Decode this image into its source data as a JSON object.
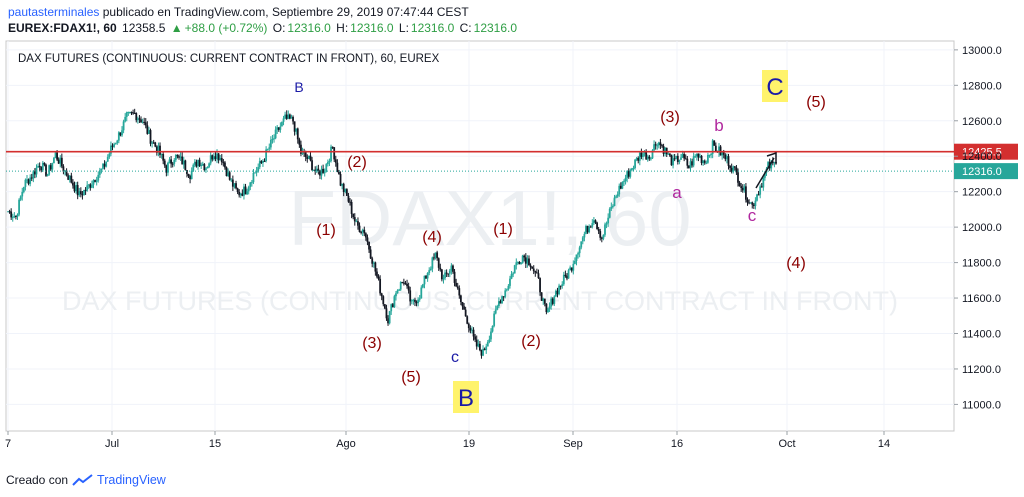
{
  "header": {
    "author": "pautasterminales",
    "published": " publicado en TradingView.com, Septiembre 29, 2019 07:47:44 CEST",
    "symbol": "EUREX:FDAX1!, 60",
    "last": "12358.5",
    "change": "+88.0 (+0.72%)",
    "o_label": "O:",
    "o_value": "12316.0",
    "h_label": "H:",
    "h_value": "12316.0",
    "l_label": "L:",
    "l_value": "12316.0",
    "c_label": "C:",
    "c_value": "12316.0"
  },
  "chart_title": "DAX FUTURES (CONTINUOUS: CURRENT CONTRACT IN FRONT), 60, EUREX",
  "watermark": {
    "symbol": "FDAX1!, 60",
    "name": "DAX FUTURES (CONTINUOUS: CURRENT CONTRACT IN FRONT)"
  },
  "colors": {
    "up": "#26a69a",
    "down": "#131722",
    "resistance": "#d32f2f",
    "last_price": "#26a69a",
    "wave_red": "#8b0000",
    "wave_blue": "#1a1aa6",
    "wave_magenta": "#b0279e",
    "highlight": "#fff36b"
  },
  "chart_data": {
    "type": "line",
    "x_ticks": [
      "7",
      "Jul",
      "15",
      "Ago",
      "19",
      "Sep",
      "16",
      "Oct",
      "14"
    ],
    "y_ticks": [
      11000,
      11200,
      11400,
      11600,
      11800,
      12000,
      12200,
      12400,
      12600,
      12800,
      13000
    ],
    "y_tick_labels": [
      "11000.0",
      "11200.0",
      "11400.0",
      "11600.0",
      "11800.0",
      "12000.0",
      "12200.0",
      "12400.0",
      "12600.0",
      "12800.0",
      "13000.0"
    ],
    "ylim": [
      10850,
      13050
    ],
    "series": [
      {
        "values": [
          12090,
          12060,
          12240,
          12290,
          12360,
          12300,
          12410,
          12330,
          12260,
          12180,
          12220,
          12280,
          12330,
          12440,
          12520,
          12620,
          12640,
          12600,
          12500,
          12430,
          12330,
          12400,
          12370,
          12300,
          12380,
          12340,
          12420,
          12390,
          12270,
          12190,
          12210,
          12300,
          12360,
          12450,
          12540,
          12610,
          12600,
          12420,
          12380,
          12300,
          12330,
          12450,
          12250,
          12150,
          12010,
          11980,
          11820,
          11650,
          11480,
          11640,
          11700,
          11560,
          11620,
          11750,
          11840,
          11700,
          11780,
          11600,
          11480,
          11340,
          11290,
          11420,
          11580,
          11660,
          11780,
          11840,
          11800,
          11690,
          11500,
          11620,
          11690,
          11760,
          11880,
          11980,
          12060,
          11940,
          12080,
          12200,
          12280,
          12350,
          12420,
          12400,
          12490,
          12430,
          12360,
          12400,
          12340,
          12410,
          12370,
          12460,
          12420,
          12370,
          12300,
          12200,
          12120,
          12230,
          12340,
          12358
        ]
      }
    ],
    "resistance_level": 12425.5,
    "resistance_label": "12425.5",
    "last_price_level": 12316.0,
    "last_price_label": "12316.0",
    "wave_labels": [
      {
        "text": "B",
        "x": 299,
        "y": 87,
        "color": "#1a1aa6",
        "size": 14
      },
      {
        "text": "(2)",
        "x": 357,
        "y": 162,
        "color": "#8b0000",
        "size": 16
      },
      {
        "text": "(1)",
        "x": 326,
        "y": 230,
        "color": "#8b0000",
        "size": 16
      },
      {
        "text": "(4)",
        "x": 432,
        "y": 237,
        "color": "#8b0000",
        "size": 16
      },
      {
        "text": "(1)",
        "x": 503,
        "y": 229,
        "color": "#8b0000",
        "size": 16
      },
      {
        "text": "(3)",
        "x": 372,
        "y": 343,
        "color": "#8b0000",
        "size": 16
      },
      {
        "text": "(5)",
        "x": 411,
        "y": 377,
        "color": "#8b0000",
        "size": 16
      },
      {
        "text": "c",
        "x": 455,
        "y": 357,
        "color": "#1a1aa6",
        "size": 16
      },
      {
        "text": "(2)",
        "x": 531,
        "y": 341,
        "color": "#8b0000",
        "size": 16
      },
      {
        "text": "(3)",
        "x": 670,
        "y": 117,
        "color": "#8b0000",
        "size": 16
      },
      {
        "text": "b",
        "x": 719,
        "y": 126,
        "color": "#b0279e",
        "size": 17
      },
      {
        "text": "a",
        "x": 677,
        "y": 193,
        "color": "#b0279e",
        "size": 17
      },
      {
        "text": "c",
        "x": 752,
        "y": 216,
        "color": "#b0279e",
        "size": 17
      },
      {
        "text": "(5)",
        "x": 816,
        "y": 102,
        "color": "#8b0000",
        "size": 16
      },
      {
        "text": "(4)",
        "x": 796,
        "y": 263,
        "color": "#8b0000",
        "size": 16
      }
    ],
    "boxed_labels": [
      {
        "text": "C",
        "x": 775,
        "y": 86,
        "color": "#1a1aa6",
        "bg": "#fff36b"
      },
      {
        "text": "B",
        "x": 466,
        "y": 397,
        "color": "#1a1aa6",
        "bg": "#fff36b"
      }
    ]
  },
  "footer": {
    "created": "Creado con",
    "brand": "TradingView"
  }
}
